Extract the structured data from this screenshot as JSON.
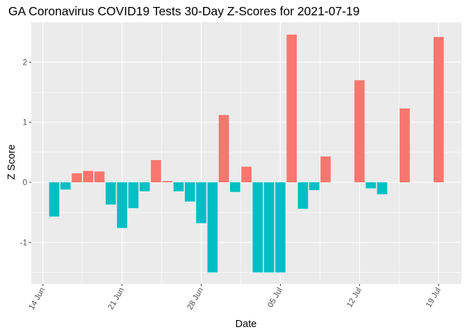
{
  "chart_data": {
    "type": "bar",
    "title": "GA Coronavirus COVID19 Tests 30-Day Z-Scores for 2021-07-19",
    "xlabel": "Date",
    "ylabel": "Z Score",
    "ylim": [
      -1.5,
      2.5
    ],
    "y_ticks": [
      -1,
      0,
      1,
      2
    ],
    "x_ticks": [
      {
        "date": "2021-06-14",
        "label": "14 Jun"
      },
      {
        "date": "2021-06-21",
        "label": "21 Jun"
      },
      {
        "date": "2021-06-28",
        "label": "28 Jun"
      },
      {
        "date": "2021-07-05",
        "label": "05 Jul"
      },
      {
        "date": "2021-07-12",
        "label": "12 Jul"
      },
      {
        "date": "2021-07-19",
        "label": "19 Jul"
      }
    ],
    "grid": true,
    "legend": "none",
    "colors": {
      "positive": "#F8766D",
      "negative": "#00BFC4"
    },
    "points": [
      {
        "date": "2021-06-15",
        "value": -0.57
      },
      {
        "date": "2021-06-16",
        "value": -0.12
      },
      {
        "date": "2021-06-17",
        "value": 0.15
      },
      {
        "date": "2021-06-18",
        "value": 0.19
      },
      {
        "date": "2021-06-19",
        "value": 0.18
      },
      {
        "date": "2021-06-20",
        "value": -0.37
      },
      {
        "date": "2021-06-21",
        "value": -0.76
      },
      {
        "date": "2021-06-22",
        "value": -0.43
      },
      {
        "date": "2021-06-23",
        "value": -0.15
      },
      {
        "date": "2021-06-24",
        "value": 0.37
      },
      {
        "date": "2021-06-25",
        "value": 0.02
      },
      {
        "date": "2021-06-26",
        "value": -0.15
      },
      {
        "date": "2021-06-27",
        "value": -0.32
      },
      {
        "date": "2021-06-28",
        "value": -0.68
      },
      {
        "date": "2021-06-29",
        "value": -1.5
      },
      {
        "date": "2021-06-30",
        "value": 1.12
      },
      {
        "date": "2021-07-01",
        "value": -0.16
      },
      {
        "date": "2021-07-02",
        "value": 0.26
      },
      {
        "date": "2021-07-03",
        "value": -1.5
      },
      {
        "date": "2021-07-04",
        "value": -1.5
      },
      {
        "date": "2021-07-05",
        "value": -1.5
      },
      {
        "date": "2021-07-06",
        "value": 2.46
      },
      {
        "date": "2021-07-07",
        "value": -0.44
      },
      {
        "date": "2021-07-08",
        "value": -0.13
      },
      {
        "date": "2021-07-09",
        "value": 0.43
      },
      {
        "date": "2021-07-12",
        "value": 1.7
      },
      {
        "date": "2021-07-13",
        "value": -0.1
      },
      {
        "date": "2021-07-14",
        "value": -0.2
      },
      {
        "date": "2021-07-16",
        "value": 1.23
      },
      {
        "date": "2021-07-19",
        "value": 2.42
      }
    ]
  }
}
